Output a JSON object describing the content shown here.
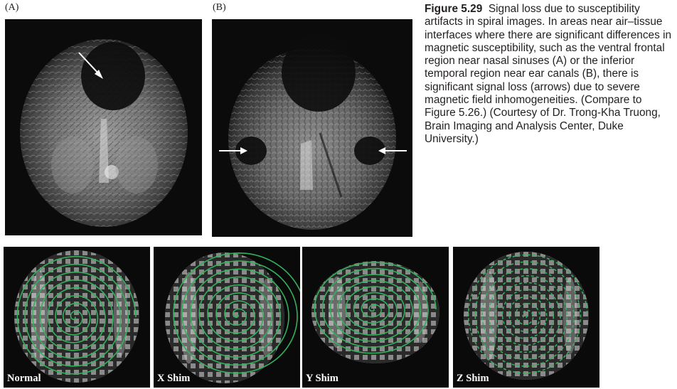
{
  "panels": {
    "a_label": "(A)",
    "b_label": "(B)"
  },
  "caption": {
    "figure_number": "Figure 5.29",
    "text": "Signal loss due to susceptibility artifacts in spiral images. In areas near air–tissue interfaces where there are significant differences in magnetic susceptibility, such as the ventral frontal region near nasal sinuses (A) or the inferior temporal region near ear canals (B), there is significant signal loss (arrows) due to severe magnetic field inhomogeneities. (Compare to Figure 5.26.) (Courtesy of Dr. Trong-Kha Truong, Brain Imaging and Analysis Center, Duke University.)"
  },
  "shim_panels": [
    {
      "label": "Normal"
    },
    {
      "label": "X Shim"
    },
    {
      "label": "Y Shim"
    },
    {
      "label": "Z Shim"
    }
  ],
  "colors": {
    "spiral": "#33b15a",
    "arrow": "#ffffff",
    "background": "#0b0b0b"
  }
}
